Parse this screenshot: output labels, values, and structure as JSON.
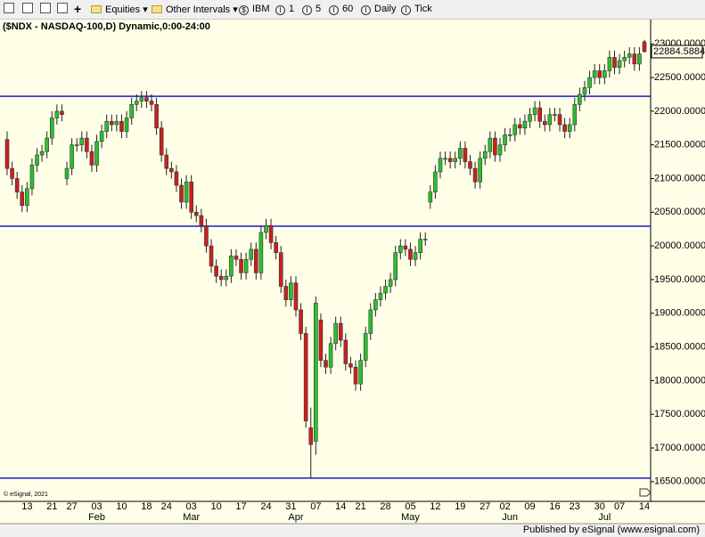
{
  "toolbar": {
    "items": [
      "Equities",
      "Other Intervals",
      "IBM",
      "1",
      "5",
      "60",
      "Daily",
      "Tick"
    ]
  },
  "footer": "Published by eSignal (www.esignal.com)",
  "chart_data": {
    "type": "candlestick",
    "title": "($NDX - NASDAQ-100,D) Dynamic,0:00-24:00",
    "watermark": "© eSignal, 2021",
    "categories": [
      null,
      null,
      null,
      null,
      "13",
      null,
      null,
      null,
      null,
      "21",
      null,
      null,
      null,
      "27",
      null,
      null,
      null,
      null,
      "03",
      null,
      null,
      null,
      null,
      "10",
      null,
      null,
      null,
      null,
      "18",
      null,
      null,
      null,
      "24",
      null,
      null,
      null,
      null,
      "03",
      null,
      null,
      null,
      null,
      "10",
      null,
      null,
      null,
      null,
      "17",
      null,
      null,
      null,
      null,
      "24",
      null,
      null,
      null,
      null,
      "31",
      null,
      null,
      null,
      null,
      "07",
      null,
      null,
      null,
      null,
      "14",
      null,
      null,
      null,
      "21",
      null,
      null,
      null,
      null,
      "28",
      null,
      null,
      null,
      null,
      "05",
      null,
      null,
      null,
      null,
      "12",
      null,
      null,
      null,
      null,
      "19",
      null,
      null,
      null,
      null,
      "27",
      null,
      null,
      null,
      "02",
      null,
      null,
      null,
      null,
      "09",
      null,
      null,
      null,
      null,
      "16",
      null,
      null,
      null,
      "23",
      null,
      null,
      null,
      null,
      "30",
      null,
      null,
      null,
      "07",
      null,
      null,
      null,
      null,
      "14"
    ],
    "months": [
      null,
      null,
      null,
      null,
      null,
      null,
      null,
      null,
      null,
      null,
      null,
      null,
      null,
      null,
      null,
      null,
      null,
      null,
      "Feb",
      null,
      null,
      null,
      null,
      null,
      null,
      null,
      null,
      null,
      null,
      null,
      null,
      null,
      null,
      null,
      null,
      null,
      null,
      "Mar",
      null,
      null,
      null,
      null,
      null,
      null,
      null,
      null,
      null,
      null,
      null,
      null,
      null,
      null,
      null,
      null,
      null,
      null,
      null,
      null,
      "Apr",
      null,
      null,
      null,
      null,
      null,
      null,
      null,
      null,
      null,
      null,
      null,
      null,
      null,
      null,
      null,
      null,
      null,
      null,
      null,
      null,
      null,
      null,
      "May",
      null,
      null,
      null,
      null,
      null,
      null,
      null,
      null,
      null,
      null,
      null,
      null,
      null,
      null,
      null,
      null,
      null,
      null,
      null,
      "Jun",
      null,
      null,
      null,
      null,
      null,
      null,
      null,
      null,
      null,
      null,
      null,
      null,
      null,
      null,
      null,
      null,
      null,
      null,
      "Jul",
      null,
      null,
      null,
      null,
      null,
      null,
      null,
      null
    ],
    "open": [
      21580,
      21150,
      21000,
      20800,
      20600,
      20850,
      21200,
      21350,
      21400,
      21600,
      21900,
      22000,
      21000,
      21150,
      21500,
      21500,
      21600,
      21400,
      21200,
      21550,
      21700,
      21850,
      21800,
      21850,
      21700,
      21900,
      22100,
      22150,
      22200,
      22150,
      22100,
      21750,
      21350,
      21150,
      21100,
      20900,
      20650,
      20950,
      20500,
      20450,
      20300,
      20000,
      19700,
      19550,
      19500,
      19550,
      19850,
      19800,
      19600,
      19800,
      19950,
      19600,
      20200,
      20300,
      20050,
      19900,
      19400,
      19200,
      19450,
      19050,
      18700,
      17300,
      17100,
      18900,
      18300,
      18200,
      18550,
      18850,
      18600,
      18250,
      18200,
      17950,
      18300,
      18700,
      19050,
      19200,
      19300,
      19400,
      19500,
      19900,
      20000,
      19950,
      19800,
      19900,
      20100,
      20650,
      20800,
      21100,
      21300,
      21300,
      21250,
      21300,
      21450,
      21250,
      21150,
      20950,
      21300,
      21400,
      21600,
      21350,
      21500,
      21650,
      21650,
      21800,
      21750,
      21850,
      21950,
      22050,
      21850,
      21800,
      21950,
      21950,
      21800,
      21700,
      21800,
      22100,
      22250,
      22350,
      22500,
      22600,
      22500,
      22600,
      22800,
      22650,
      22750,
      22800,
      22850,
      22700,
      23030
    ],
    "high": [
      21700,
      21250,
      21100,
      20900,
      20950,
      21300,
      21450,
      21500,
      21700,
      22000,
      22100,
      22100,
      21250,
      21600,
      21600,
      21700,
      21700,
      21500,
      21650,
      21800,
      21950,
      21950,
      21950,
      21950,
      22000,
      22200,
      22250,
      22300,
      22300,
      22250,
      22200,
      21850,
      21450,
      21250,
      21200,
      21000,
      21050,
      21050,
      20600,
      20550,
      20400,
      20100,
      19800,
      19650,
      19650,
      19950,
      19950,
      19900,
      19900,
      20050,
      20050,
      20300,
      20400,
      20400,
      20150,
      20000,
      19500,
      19550,
      19550,
      19150,
      18800,
      17600,
      19250,
      19000,
      18400,
      18650,
      18950,
      18950,
      18700,
      18350,
      18300,
      18400,
      18800,
      19150,
      19300,
      19400,
      19500,
      19600,
      20000,
      20100,
      20100,
      20050,
      20000,
      20200,
      20200,
      20900,
      21200,
      21400,
      21400,
      21400,
      21400,
      21550,
      21550,
      21350,
      21250,
      21400,
      21500,
      21700,
      21700,
      21600,
      21750,
      21750,
      21900,
      21900,
      21950,
      22050,
      22150,
      22150,
      21950,
      22050,
      22050,
      22050,
      21900,
      21900,
      22200,
      22350,
      22450,
      22600,
      22700,
      22700,
      22700,
      22900,
      22900,
      22850,
      22900,
      22950,
      22950,
      22950,
      23060
    ],
    "low": [
      21050,
      20900,
      20700,
      20500,
      20500,
      20750,
      21100,
      21250,
      21300,
      21500,
      21800,
      21850,
      20900,
      21050,
      21400,
      21400,
      21300,
      21100,
      21100,
      21450,
      21600,
      21700,
      21700,
      21600,
      21600,
      21800,
      22000,
      22050,
      22050,
      22000,
      21650,
      21250,
      21050,
      21000,
      20800,
      20550,
      20550,
      20400,
      20350,
      20200,
      19900,
      19600,
      19450,
      19400,
      19400,
      19450,
      19700,
      19500,
      19500,
      19700,
      19500,
      19500,
      20100,
      19950,
      19800,
      19300,
      19100,
      19100,
      18950,
      18600,
      17300,
      16550,
      16900,
      18200,
      18100,
      18100,
      18450,
      18500,
      18150,
      18100,
      17850,
      17850,
      18200,
      18600,
      18950,
      19100,
      19200,
      19300,
      19400,
      19800,
      19850,
      19700,
      19700,
      19800,
      20000,
      20550,
      20700,
      21000,
      21200,
      21150,
      21150,
      21200,
      21150,
      21050,
      20850,
      20850,
      21200,
      21300,
      21250,
      21250,
      21400,
      21550,
      21550,
      21650,
      21650,
      21750,
      21850,
      21750,
      21700,
      21700,
      21850,
      21700,
      21600,
      21600,
      21700,
      22000,
      22150,
      22250,
      22400,
      22400,
      22400,
      22500,
      22550,
      22550,
      22650,
      22700,
      22600,
      22600,
      22870
    ],
    "close": [
      21150,
      21000,
      20800,
      20600,
      20850,
      21200,
      21350,
      21400,
      21600,
      21900,
      22000,
      21950,
      21150,
      21500,
      21500,
      21600,
      21400,
      21200,
      21550,
      21700,
      21850,
      21800,
      21850,
      21700,
      21900,
      22100,
      22150,
      22200,
      22150,
      22100,
      21750,
      21350,
      21150,
      21100,
      20900,
      20650,
      20950,
      20500,
      20450,
      20300,
      20000,
      19700,
      19550,
      19500,
      19550,
      19850,
      19800,
      19600,
      19800,
      19950,
      19600,
      20200,
      20300,
      20050,
      19900,
      19400,
      19200,
      19450,
      19050,
      18700,
      17400,
      17050,
      19150,
      18300,
      18200,
      18550,
      18850,
      18600,
      18250,
      18200,
      17950,
      18300,
      18700,
      19050,
      19200,
      19300,
      19400,
      19500,
      19900,
      20000,
      19950,
      19800,
      19900,
      20100,
      20100,
      20800,
      21100,
      21300,
      21300,
      21250,
      21300,
      21450,
      21250,
      21150,
      20950,
      21300,
      21400,
      21600,
      21350,
      21500,
      21650,
      21650,
      21800,
      21750,
      21850,
      21950,
      22050,
      21850,
      21800,
      21950,
      21950,
      21800,
      21700,
      21800,
      22100,
      22250,
      22350,
      22500,
      22600,
      22500,
      22600,
      22800,
      22650,
      22750,
      22800,
      22850,
      22700,
      22850,
      22884.5884
    ],
    "up_color": "#2cc02c",
    "down_color": "#cc1f1f",
    "hlines": [
      22221,
      20292,
      16553
    ],
    "hline_color": "#1a1acc",
    "ylim": [
      16220,
      23360
    ],
    "yticks": [
      {
        "value": 16500,
        "label": "16500.0000"
      },
      {
        "value": 17000,
        "label": "17000.0000"
      },
      {
        "value": 17500,
        "label": "17500.0000"
      },
      {
        "value": 18000,
        "label": "18000.0000"
      },
      {
        "value": 18500,
        "label": "18500.0000"
      },
      {
        "value": 19000,
        "label": "19000.0000"
      },
      {
        "value": 19500,
        "label": "19500.0000"
      },
      {
        "value": 20000,
        "label": "20000.0000"
      },
      {
        "value": 20500,
        "label": "20500.0000"
      },
      {
        "value": 21000,
        "label": "21000.0000"
      },
      {
        "value": 21500,
        "label": "21500.0000"
      },
      {
        "value": 22000,
        "label": "22000.0000"
      },
      {
        "value": 22500,
        "label": "22500.0000"
      },
      {
        "value": 23000,
        "label": "23000.0000"
      }
    ],
    "grid": false
  }
}
